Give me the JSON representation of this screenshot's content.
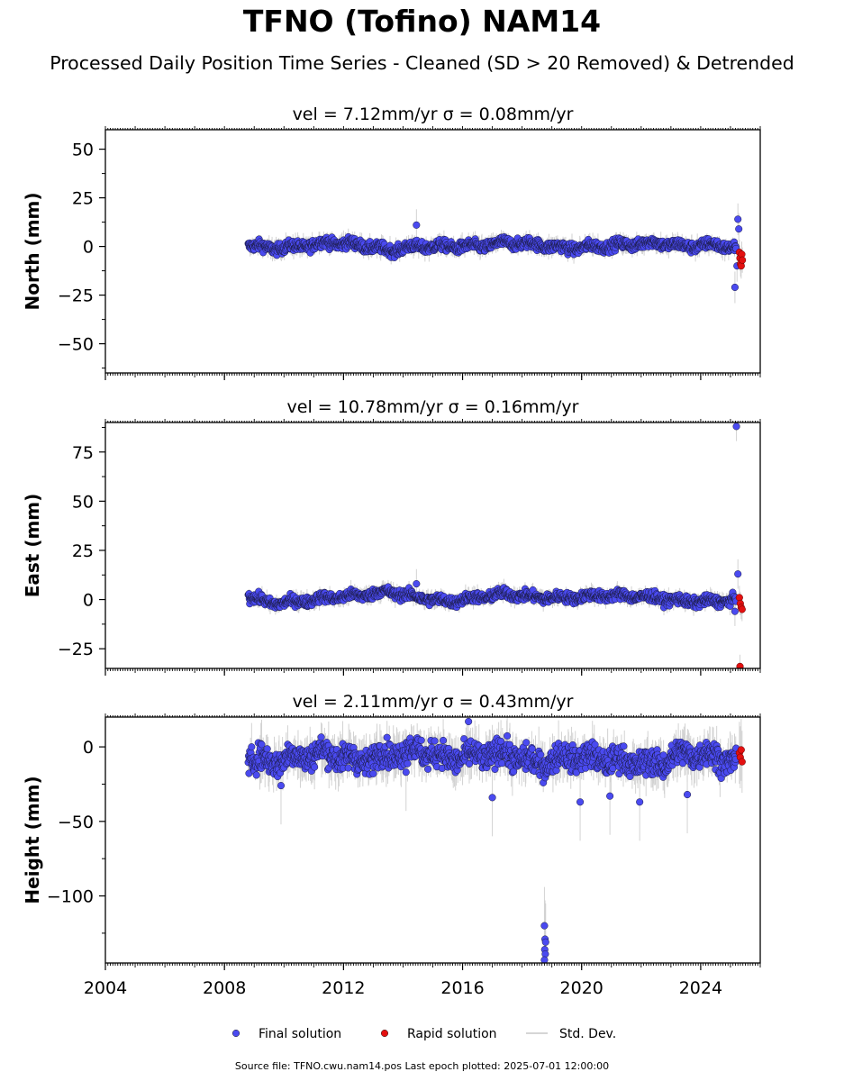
{
  "title": "TFNO (Tofino) NAM14",
  "subtitle": "Processed Daily Position Time Series - Cleaned (SD > 20 Removed) & Detrended",
  "source_line": "Source file: TFNO.cwu.nam14.pos  Last epoch plotted: 2025-07-01 12:00:00",
  "colors": {
    "final": "#4a4af0",
    "rapid": "#e31010",
    "stddev": "#c8c8c8",
    "edge": "#1a1a40"
  },
  "legend": [
    {
      "label": "Final solution",
      "marker": "dot",
      "color": "#4a4af0"
    },
    {
      "label": "Rapid solution",
      "marker": "dot",
      "color": "#e31010"
    },
    {
      "label": "Std. Dev.",
      "marker": "line",
      "color": "#c8c8c8"
    }
  ],
  "chart_data": [
    {
      "type": "scatter",
      "component": "North",
      "title": "vel = 7.12mm/yr   σ = 0.08mm/yr",
      "ylabel": "North (mm)",
      "xlim": [
        2004,
        2026
      ],
      "ylim": [
        -65,
        60
      ],
      "yticks": [
        -50,
        -25,
        0,
        25,
        50
      ],
      "ytick_labels": [
        "−50",
        "−25",
        "0",
        "25",
        "50"
      ],
      "xticks": [
        2004,
        2008,
        2012,
        2016,
        2020,
        2024
      ],
      "xtick_labels": [],
      "final_trend": {
        "x": [
          2008.8,
          2009.5,
          2010.5,
          2011.5,
          2012.5,
          2013.5,
          2014.5,
          2015.5,
          2016.5,
          2017.5,
          2018.5,
          2019.5,
          2020.5,
          2021.5,
          2022.5,
          2023.5,
          2024.5,
          2025.2
        ],
        "y": [
          1,
          -1,
          0,
          2,
          1,
          -2,
          0,
          0,
          0,
          2,
          1,
          -1,
          0,
          1,
          2,
          0,
          1,
          -1
        ]
      },
      "final_scatter": 2.5,
      "final_outliers": {
        "x": [
          2014.45,
          2025.15,
          2025.25,
          2025.28,
          2025.22
        ],
        "y": [
          11,
          -21,
          14,
          9,
          -10
        ]
      },
      "rapid": {
        "x": [
          2025.3,
          2025.32,
          2025.34,
          2025.36,
          2025.38,
          2025.4
        ],
        "y": [
          -3,
          -6,
          -9,
          -10,
          -4,
          -7
        ]
      },
      "gaps": []
    },
    {
      "type": "scatter",
      "component": "East",
      "title": "vel = 10.78mm/yr   σ = 0.16mm/yr",
      "ylabel": "East (mm)",
      "xlim": [
        2004,
        2026
      ],
      "ylim": [
        -35,
        90
      ],
      "yticks": [
        -25,
        0,
        25,
        50,
        75
      ],
      "ytick_labels": [
        "−25",
        "0",
        "25",
        "50",
        "75"
      ],
      "xticks": [
        2004,
        2008,
        2012,
        2016,
        2020,
        2024
      ],
      "xtick_labels": [],
      "final_trend": {
        "x": [
          2008.8,
          2009.5,
          2010.5,
          2011.5,
          2012.5,
          2013.5,
          2014.5,
          2015.5,
          2016.5,
          2017.5,
          2018.5,
          2019.5,
          2020.5,
          2021.5,
          2022.5,
          2023.5,
          2024.5,
          2025.2
        ],
        "y": [
          2,
          -2,
          -1,
          1,
          2,
          4,
          1,
          -1,
          1,
          3,
          1,
          1,
          2,
          2,
          1,
          -1,
          -1,
          0
        ]
      },
      "final_scatter": 2.3,
      "final_outliers": {
        "x": [
          2014.45,
          2025.2,
          2025.25,
          2025.15
        ],
        "y": [
          8,
          88,
          13,
          -6
        ]
      },
      "rapid": {
        "x": [
          2025.3,
          2025.33,
          2025.36,
          2025.39,
          2025.32
        ],
        "y": [
          1,
          -2,
          -4,
          -5,
          -34
        ]
      },
      "gaps": []
    },
    {
      "type": "scatter",
      "component": "Height",
      "title": "vel = 2.11mm/yr   σ = 0.43mm/yr",
      "ylabel": "Height (mm)",
      "xlim": [
        2004,
        2026
      ],
      "ylim": [
        -145,
        20
      ],
      "yticks": [
        -100,
        -50,
        0
      ],
      "ytick_labels": [
        "−100",
        "−50",
        "0"
      ],
      "xticks": [
        2004,
        2008,
        2012,
        2016,
        2020,
        2024
      ],
      "xtick_labels": [
        "2004",
        "2008",
        "2012",
        "2016",
        "2020",
        "2024"
      ],
      "final_trend": {
        "x": [
          2008.8,
          2009.5,
          2010.5,
          2011.5,
          2012.5,
          2013.5,
          2014.5,
          2015.5,
          2016.5,
          2017.5,
          2018.5,
          2019.5,
          2020.5,
          2021.5,
          2022.5,
          2023.5,
          2024.5,
          2025.2
        ],
        "y": [
          -8,
          -10,
          -6,
          -4,
          -10,
          -5,
          -2,
          -8,
          -6,
          -4,
          -12,
          -6,
          -8,
          -10,
          -12,
          -4,
          -6,
          -10
        ]
      },
      "final_scatter": 8,
      "final_outliers": {
        "x": [
          2009.9,
          2014.1,
          2016.2,
          2017.0,
          2019.95,
          2020.95,
          2021.95,
          2023.55,
          2018.75,
          2018.77,
          2018.79,
          2018.76,
          2018.78,
          2018.75
        ],
        "y": [
          -26,
          -17,
          17,
          -34,
          -37,
          -33,
          -37,
          -32,
          -120,
          -129,
          -131,
          -136,
          -139,
          -143
        ]
      },
      "rapid": {
        "x": [
          2025.3,
          2025.33,
          2025.36,
          2025.39
        ],
        "y": [
          -4,
          -7,
          -2,
          -10
        ]
      },
      "gaps": []
    }
  ]
}
